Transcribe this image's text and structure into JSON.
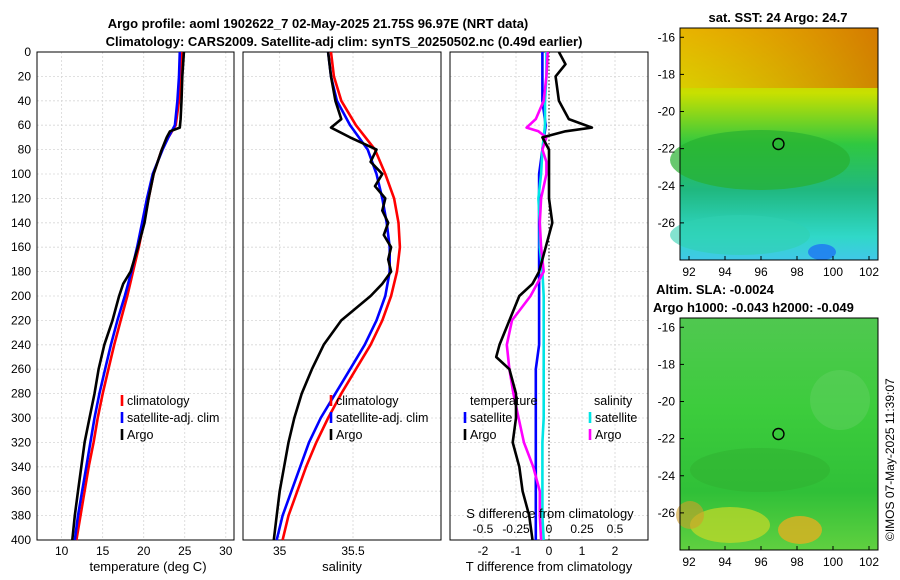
{
  "header": {
    "title_line1": "Argo profile: aoml 1902622_7 02-May-2025 21.75S 96.97E (NRT data)",
    "title_line2": "Climatology: CARS2009. Satellite-adj clim: synTS_20250502.nc (0.49d earlier)"
  },
  "credit": "©IMOS 07-May-2025 11:39:07",
  "colors": {
    "climatology": "#ff0000",
    "satellite": "#0000ff",
    "argo": "#000000",
    "sat_salinity": "#00e5e5",
    "argo_salinity": "#ff00ff"
  },
  "chart_data": [
    {
      "type": "line",
      "title": "",
      "xlabel": "temperature (deg C)",
      "ylabel": "",
      "xlim": [
        7,
        31
      ],
      "ylim": [
        400,
        0
      ],
      "xticks": [
        10,
        15,
        20,
        25,
        30
      ],
      "yticks": [
        0,
        20,
        40,
        60,
        80,
        100,
        120,
        140,
        160,
        180,
        200,
        220,
        240,
        260,
        280,
        300,
        320,
        340,
        360,
        380,
        400
      ],
      "grid": true,
      "legend": {
        "position": "lower-right",
        "entries": [
          "climatology",
          "satellite-adj. clim",
          "Argo"
        ]
      },
      "series": [
        {
          "name": "climatology",
          "depth": [
            0,
            20,
            40,
            60,
            70,
            80,
            100,
            120,
            140,
            160,
            180,
            200,
            220,
            240,
            260,
            280,
            300,
            320,
            340,
            360,
            380,
            400
          ],
          "values": [
            24.6,
            24.5,
            24.3,
            23.9,
            23.0,
            22.2,
            21.2,
            20.6,
            20.0,
            19.4,
            18.7,
            18.0,
            17.2,
            16.4,
            15.7,
            15.0,
            14.4,
            13.9,
            13.3,
            12.8,
            12.3,
            11.8
          ]
        },
        {
          "name": "satellite-adj. clim",
          "depth": [
            0,
            20,
            40,
            60,
            70,
            80,
            100,
            120,
            140,
            160,
            180,
            200,
            220,
            240,
            260,
            280,
            300,
            320,
            340,
            360,
            380,
            400
          ],
          "values": [
            24.4,
            24.3,
            24.1,
            23.8,
            23.0,
            22.3,
            21.1,
            20.4,
            19.8,
            19.2,
            18.5,
            17.7,
            16.8,
            16.0,
            15.3,
            14.6,
            14.0,
            13.5,
            13.0,
            12.5,
            12.0,
            11.6
          ]
        },
        {
          "name": "Argo",
          "depth": [
            0,
            20,
            40,
            55,
            62,
            65,
            70,
            80,
            100,
            120,
            140,
            160,
            180,
            190,
            200,
            220,
            240,
            260,
            280,
            300,
            320,
            340,
            360,
            380,
            400
          ],
          "values": [
            24.9,
            24.7,
            24.6,
            24.5,
            24.4,
            23.2,
            22.8,
            22.2,
            21.2,
            20.6,
            20.1,
            19.3,
            18.4,
            17.5,
            17.0,
            16.2,
            15.2,
            14.5,
            14.0,
            13.4,
            12.8,
            12.4,
            12.0,
            11.6,
            11.3
          ]
        }
      ]
    },
    {
      "type": "line",
      "title": "",
      "xlabel": "salinity",
      "ylabel": "",
      "xlim": [
        34.75,
        36.1
      ],
      "ylim": [
        400,
        0
      ],
      "xticks": [
        35,
        35.5
      ],
      "grid": true,
      "legend": {
        "position": "lower-right",
        "entries": [
          "climatology",
          "satellite-adj. clim",
          "Argo"
        ]
      },
      "series": [
        {
          "name": "climatology",
          "depth": [
            0,
            20,
            40,
            60,
            80,
            100,
            120,
            140,
            160,
            180,
            200,
            220,
            240,
            260,
            280,
            300,
            320,
            340,
            360,
            380,
            400
          ],
          "values": [
            35.35,
            35.37,
            35.42,
            35.52,
            35.65,
            35.72,
            35.78,
            35.81,
            35.82,
            35.8,
            35.76,
            35.7,
            35.62,
            35.52,
            35.42,
            35.33,
            35.25,
            35.18,
            35.12,
            35.06,
            35.02
          ]
        },
        {
          "name": "satellite-adj. clim",
          "depth": [
            0,
            20,
            40,
            60,
            80,
            100,
            120,
            140,
            160,
            180,
            200,
            220,
            240,
            260,
            280,
            300,
            320,
            340,
            360,
            380,
            400
          ],
          "values": [
            35.33,
            35.35,
            35.39,
            35.48,
            35.6,
            35.66,
            35.7,
            35.73,
            35.75,
            35.75,
            35.72,
            35.66,
            35.58,
            35.48,
            35.38,
            35.28,
            35.2,
            35.14,
            35.08,
            35.02,
            34.98
          ]
        },
        {
          "name": "Argo",
          "depth": [
            0,
            20,
            40,
            55,
            62,
            70,
            80,
            90,
            100,
            110,
            120,
            130,
            140,
            150,
            160,
            170,
            180,
            190,
            200,
            210,
            220,
            240,
            260,
            280,
            300,
            320,
            340,
            360,
            380,
            400
          ],
          "values": [
            35.33,
            35.35,
            35.38,
            35.42,
            35.35,
            35.48,
            35.66,
            35.62,
            35.7,
            35.65,
            35.72,
            35.7,
            35.74,
            35.71,
            35.76,
            35.74,
            35.76,
            35.7,
            35.62,
            35.52,
            35.42,
            35.3,
            35.22,
            35.15,
            35.1,
            35.06,
            35.03,
            35.0,
            34.98,
            34.96
          ]
        }
      ]
    },
    {
      "type": "line",
      "title": "",
      "xlabel": "T difference from climatology",
      "xlabel_top": "S difference from climatology",
      "xlim": [
        -3,
        3
      ],
      "ylim": [
        400,
        0
      ],
      "xticks": [
        -2,
        -1,
        0,
        1,
        2
      ],
      "xticks_top": [
        -0.5,
        -0.25,
        0,
        0.25,
        0.5
      ],
      "grid": true,
      "legend": {
        "position": "lower",
        "headers": [
          "temperature",
          "salinity"
        ],
        "entries": [
          "satellite",
          "Argo",
          "satellite",
          "Argo"
        ]
      },
      "series": [
        {
          "name": "temperature satellite",
          "depth": [
            0,
            20,
            40,
            60,
            80,
            100,
            120,
            140,
            160,
            180,
            200,
            220,
            240,
            260,
            280,
            300,
            320,
            340,
            360,
            380,
            400
          ],
          "values": [
            -0.2,
            -0.2,
            -0.2,
            -0.1,
            -0.2,
            -0.3,
            -0.3,
            -0.3,
            -0.3,
            -0.3,
            -0.3,
            -0.3,
            -0.3,
            -0.4,
            -0.4,
            -0.4,
            -0.4,
            -0.4,
            -0.4,
            -0.4,
            -0.4
          ]
        },
        {
          "name": "temperature Argo",
          "depth": [
            0,
            10,
            20,
            40,
            55,
            62,
            65,
            70,
            80,
            100,
            120,
            140,
            160,
            180,
            190,
            200,
            220,
            240,
            250,
            260,
            280,
            300,
            320,
            340,
            360,
            380,
            400
          ],
          "values": [
            0.3,
            0.5,
            0.2,
            0.3,
            0.6,
            1.3,
            0.5,
            -0.2,
            0.0,
            0.0,
            0.0,
            0.1,
            -0.1,
            -0.3,
            -0.5,
            -0.9,
            -1.2,
            -1.5,
            -1.6,
            -1.2,
            -1.0,
            -1.0,
            -1.1,
            -0.9,
            -0.8,
            -0.6,
            -0.5
          ]
        },
        {
          "name": "salinity satellite",
          "depth": [
            0,
            20,
            40,
            60,
            70,
            80,
            100,
            120,
            140,
            160,
            180,
            200,
            220,
            240,
            260,
            280,
            300,
            320,
            340,
            360,
            380,
            400
          ],
          "values": [
            -0.02,
            -0.02,
            -0.03,
            -0.03,
            -0.04,
            -0.05,
            -0.06,
            -0.08,
            -0.07,
            -0.07,
            -0.05,
            -0.04,
            -0.04,
            -0.04,
            -0.04,
            -0.04,
            -0.04,
            -0.05,
            -0.05,
            -0.05,
            -0.05,
            -0.04
          ]
        },
        {
          "name": "salinity Argo",
          "depth": [
            0,
            20,
            40,
            55,
            62,
            65,
            70,
            80,
            90,
            100,
            120,
            140,
            160,
            180,
            200,
            220,
            240,
            260,
            280,
            300,
            320,
            340,
            360,
            380,
            400
          ],
          "values": [
            -0.01,
            -0.02,
            -0.04,
            -0.1,
            -0.17,
            -0.08,
            -0.02,
            -0.05,
            -0.02,
            -0.02,
            -0.06,
            -0.07,
            -0.06,
            -0.04,
            -0.14,
            -0.28,
            -0.32,
            -0.3,
            -0.27,
            -0.23,
            -0.19,
            -0.12,
            -0.07,
            -0.07,
            -0.06
          ]
        }
      ]
    },
    {
      "type": "heatmap",
      "title": "sat. SST: 24 Argo: 24.7",
      "xlim": [
        91.5,
        102.5
      ],
      "ylim": [
        -28,
        -15.5
      ],
      "xticks": [
        92,
        94,
        96,
        98,
        100,
        102
      ],
      "yticks": [
        -16,
        -18,
        -20,
        -22,
        -24,
        -26
      ],
      "marker": {
        "lon": 96.97,
        "lat": -21.75
      }
    },
    {
      "type": "heatmap",
      "title": "Altim. SLA: -0.0024",
      "subtitle": "Argo h1000: -0.043 h2000: -0.049",
      "xlim": [
        91.5,
        102.5
      ],
      "ylim": [
        -28,
        -15.5
      ],
      "xticks": [
        92,
        94,
        96,
        98,
        100,
        102
      ],
      "yticks": [
        -16,
        -18,
        -20,
        -22,
        -24,
        -26
      ],
      "marker": {
        "lon": 96.97,
        "lat": -21.75
      }
    }
  ]
}
